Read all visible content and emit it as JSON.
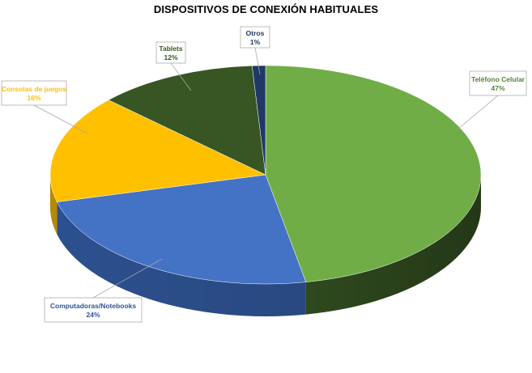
{
  "chart_data": {
    "type": "pie",
    "title": "DISPOSITIVOS DE CONEXIÓN HABITUALES",
    "slices": [
      {
        "label": "Teléfono Celular",
        "value": 47,
        "value_label": "47%",
        "color": "#70ad47",
        "dark": "#375623",
        "label_color": "#548235"
      },
      {
        "label": "Computadoras/Notebooks",
        "value": 24,
        "value_label": "24%",
        "color": "#4472c4",
        "dark": "#2f5597",
        "label_color": "#2f5597"
      },
      {
        "label": "Consolas de juegos",
        "value": 16,
        "value_label": "16%",
        "color": "#ffc000",
        "dark": "#bf9000",
        "label_color": "#ffc000"
      },
      {
        "label": "Tablets",
        "value": 12,
        "value_label": "12%",
        "color": "#375623",
        "dark": "#263d18",
        "label_color": "#375623"
      },
      {
        "label": "Otros",
        "value": 1,
        "value_label": "1%",
        "color": "#203864",
        "dark": "#172a4a",
        "label_color": "#203864"
      }
    ],
    "legend": "none",
    "data_labels": "callouts with category name and percentage"
  }
}
